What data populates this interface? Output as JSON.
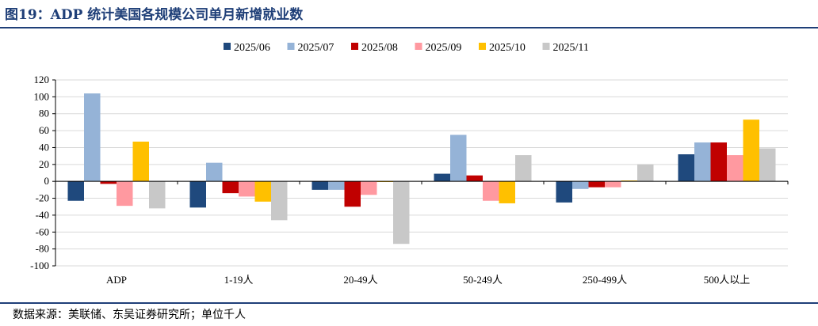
{
  "figure": {
    "title": "图19：ADP 统计美国各规模公司单月新增就业数",
    "source": "数据来源：美联储、东吴证券研究所；单位千人"
  },
  "chart_data": {
    "type": "bar",
    "categories": [
      "ADP",
      "1-19人",
      "20-49人",
      "50-249人",
      "250-499人",
      "500人以上"
    ],
    "series": [
      {
        "name": "2025/06",
        "color": "#1f497d",
        "values": [
          -23,
          -31,
          -10,
          9,
          -25,
          32
        ]
      },
      {
        "name": "2025/07",
        "color": "#95b3d7",
        "values": [
          104,
          22,
          -10,
          55,
          -9,
          46
        ]
      },
      {
        "name": "2025/08",
        "color": "#c00000",
        "values": [
          -3,
          -14,
          -30,
          7,
          -7,
          46
        ]
      },
      {
        "name": "2025/09",
        "color": "#ff99a0",
        "values": [
          -29,
          -18,
          -16,
          -23,
          -7,
          31
        ]
      },
      {
        "name": "2025/10",
        "color": "#ffc000",
        "values": [
          47,
          -24,
          0,
          -26,
          1,
          73
        ]
      },
      {
        "name": "2025/11",
        "color": "#c8c8c8",
        "values": [
          -32,
          -46,
          -74,
          31,
          20,
          39
        ]
      }
    ],
    "ylim": [
      -100,
      120
    ],
    "yticks": [
      -100,
      -80,
      -60,
      -40,
      -20,
      0,
      20,
      40,
      60,
      80,
      100,
      120
    ],
    "grid": true,
    "legend": "top"
  }
}
